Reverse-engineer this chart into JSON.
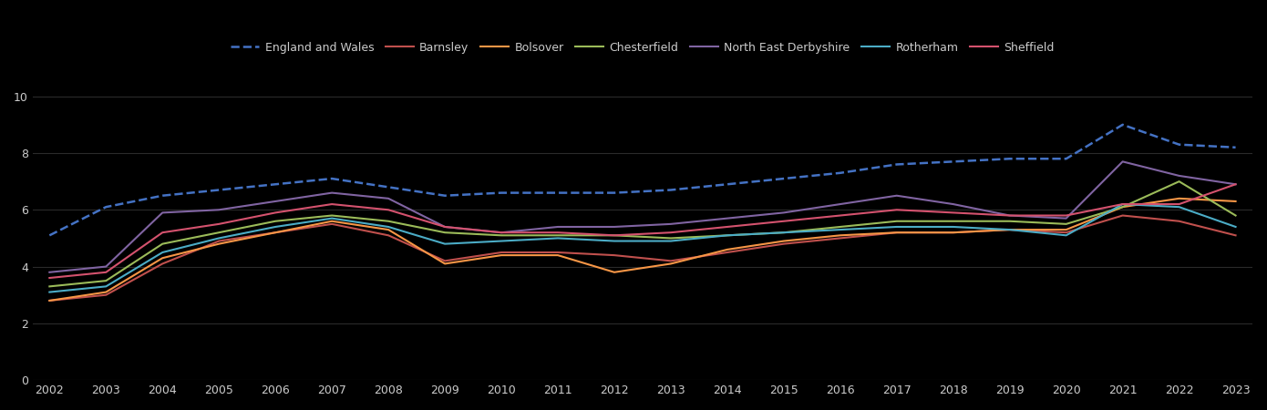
{
  "years": [
    2002,
    2003,
    2004,
    2005,
    2006,
    2007,
    2008,
    2009,
    2010,
    2011,
    2012,
    2013,
    2014,
    2015,
    2016,
    2017,
    2018,
    2019,
    2020,
    2021,
    2022,
    2023
  ],
  "series": {
    "England and Wales": {
      "values": [
        5.1,
        6.1,
        6.5,
        6.7,
        6.9,
        7.1,
        6.8,
        6.5,
        6.6,
        6.6,
        6.6,
        6.7,
        6.9,
        7.1,
        7.3,
        7.6,
        7.7,
        7.8,
        7.8,
        9.0,
        8.3,
        8.2
      ],
      "color": "#4472c4",
      "dashed": true,
      "linewidth": 1.8,
      "zorder": 5
    },
    "Barnsley": {
      "values": [
        2.8,
        3.0,
        4.1,
        4.9,
        5.2,
        5.5,
        5.1,
        4.2,
        4.5,
        4.5,
        4.4,
        4.2,
        4.5,
        4.8,
        5.0,
        5.2,
        5.2,
        5.3,
        5.2,
        5.8,
        5.6,
        5.1
      ],
      "color": "#c0504d",
      "dashed": false,
      "linewidth": 1.5,
      "zorder": 3
    },
    "Bolsover": {
      "values": [
        2.8,
        3.1,
        4.3,
        4.8,
        5.2,
        5.6,
        5.3,
        4.1,
        4.4,
        4.4,
        3.8,
        4.1,
        4.6,
        4.9,
        5.1,
        5.2,
        5.2,
        5.3,
        5.3,
        6.1,
        6.4,
        6.3
      ],
      "color": "#f79646",
      "dashed": false,
      "linewidth": 1.5,
      "zorder": 3
    },
    "Chesterfield": {
      "values": [
        3.3,
        3.5,
        4.8,
        5.2,
        5.6,
        5.8,
        5.6,
        5.2,
        5.1,
        5.1,
        5.1,
        5.0,
        5.1,
        5.2,
        5.4,
        5.6,
        5.6,
        5.6,
        5.5,
        6.1,
        7.0,
        5.8
      ],
      "color": "#9bbb59",
      "dashed": false,
      "linewidth": 1.5,
      "zorder": 3
    },
    "North East Derbyshire": {
      "values": [
        3.8,
        4.0,
        5.9,
        6.0,
        6.3,
        6.6,
        6.4,
        5.4,
        5.2,
        5.4,
        5.4,
        5.5,
        5.7,
        5.9,
        6.2,
        6.5,
        6.2,
        5.8,
        5.7,
        7.7,
        7.2,
        6.9
      ],
      "color": "#8064a2",
      "dashed": false,
      "linewidth": 1.5,
      "zorder": 3
    },
    "Rotherham": {
      "values": [
        3.1,
        3.3,
        4.5,
        5.0,
        5.4,
        5.7,
        5.4,
        4.8,
        4.9,
        5.0,
        4.9,
        4.9,
        5.1,
        5.2,
        5.3,
        5.4,
        5.4,
        5.3,
        5.1,
        6.2,
        6.1,
        5.4
      ],
      "color": "#4bacc6",
      "dashed": false,
      "linewidth": 1.5,
      "zorder": 3
    },
    "Sheffield": {
      "values": [
        3.6,
        3.8,
        5.2,
        5.5,
        5.9,
        6.2,
        6.0,
        5.4,
        5.2,
        5.2,
        5.1,
        5.2,
        5.4,
        5.6,
        5.8,
        6.0,
        5.9,
        5.8,
        5.8,
        6.2,
        6.2,
        6.9
      ],
      "color": "#c0504d",
      "dashed": false,
      "linewidth": 1.5,
      "zorder": 3
    }
  },
  "ylim": [
    0,
    10.5
  ],
  "yticks": [
    0,
    2,
    4,
    6,
    8,
    10
  ],
  "background_color": "#000000",
  "text_color": "#cccccc",
  "grid_color": "#2a2a2a",
  "legend_order": [
    "England and Wales",
    "Barnsley",
    "Bolsover",
    "Chesterfield",
    "North East Derbyshire",
    "Rotherham",
    "Sheffield"
  ]
}
